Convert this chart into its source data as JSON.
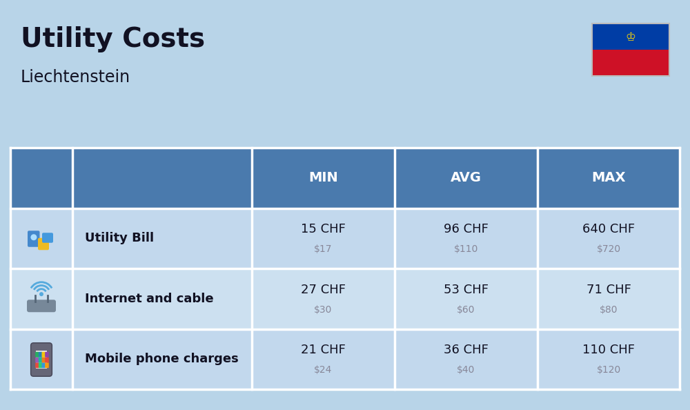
{
  "title": "Utility Costs",
  "subtitle": "Liechtenstein",
  "background_color": "#b8d4e8",
  "header_color": "#4a7aad",
  "header_text_color": "#ffffff",
  "row_colors": [
    "#c2d8ed",
    "#cce0f0"
  ],
  "cell_border_color": "#ffffff",
  "text_color": "#111122",
  "usd_color": "#888899",
  "columns": [
    "MIN",
    "AVG",
    "MAX"
  ],
  "rows": [
    {
      "label": "Utility Bill",
      "min_chf": "15 CHF",
      "min_usd": "$17",
      "avg_chf": "96 CHF",
      "avg_usd": "$110",
      "max_chf": "640 CHF",
      "max_usd": "$720"
    },
    {
      "label": "Internet and cable",
      "min_chf": "27 CHF",
      "min_usd": "$30",
      "avg_chf": "53 CHF",
      "avg_usd": "$60",
      "max_chf": "71 CHF",
      "max_usd": "$80"
    },
    {
      "label": "Mobile phone charges",
      "min_chf": "21 CHF",
      "min_usd": "$24",
      "avg_chf": "36 CHF",
      "avg_usd": "$40",
      "max_chf": "110 CHF",
      "max_usd": "$120"
    }
  ],
  "flag_colors": {
    "blue": "#003DA5",
    "red": "#CE1126"
  },
  "fig_width": 10.0,
  "fig_height": 5.94,
  "dpi": 100
}
